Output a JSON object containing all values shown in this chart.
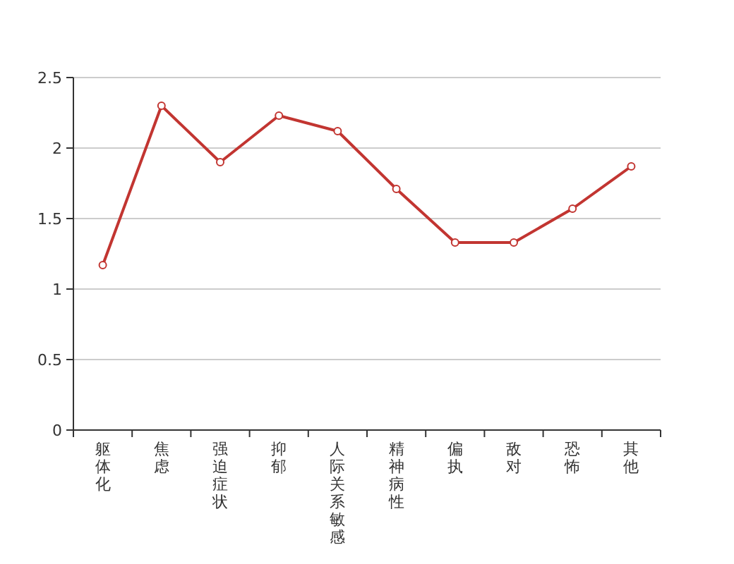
{
  "chart_data": {
    "type": "line",
    "categories": [
      "躯体化",
      "焦虑",
      "强迫症状",
      "抑郁",
      "人际关系敏感",
      "精神病性",
      "偏执",
      "敌对",
      "恐怖",
      "其他"
    ],
    "series": [
      {
        "color": "#c23531",
        "values": [
          1.17,
          2.3,
          1.9,
          2.23,
          2.12,
          1.71,
          1.33,
          1.33,
          1.57,
          1.87
        ]
      }
    ],
    "ylim": [
      0,
      2.5
    ],
    "yticks": [
      {
        "value": 0,
        "label": "0"
      },
      {
        "value": 0.5,
        "label": "0.5"
      },
      {
        "value": 1,
        "label": "1"
      },
      {
        "value": 1.5,
        "label": "1.5"
      },
      {
        "value": 2,
        "label": "2"
      },
      {
        "value": 2.5,
        "label": "2.5"
      }
    ],
    "grid": "y",
    "marker": "circle"
  }
}
